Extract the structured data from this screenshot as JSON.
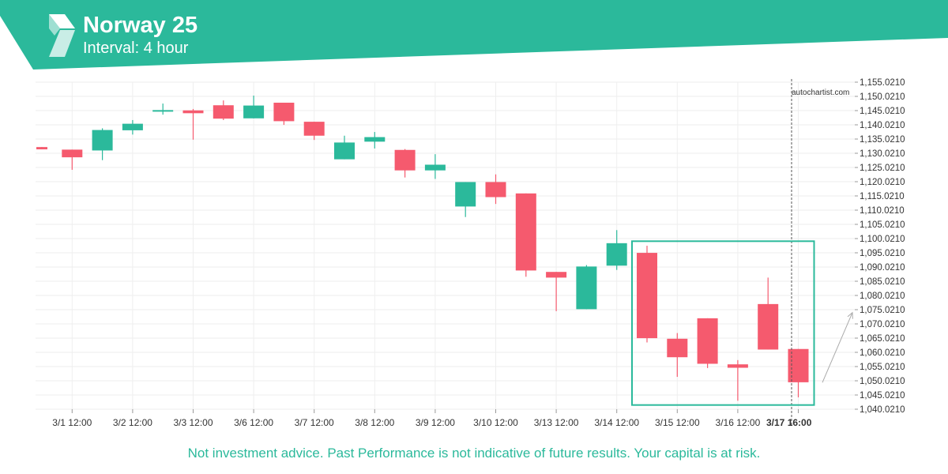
{
  "header": {
    "title": "Norway 25",
    "subtitle": "Interval: 4 hour",
    "logo_icon": "autochartist-logo-icon",
    "bg_color": "#2bb99b"
  },
  "watermark": "autochartist.com",
  "footer": {
    "disclaimer": "Not investment advice. Past Performance is not indicative of future results. Your capital is at risk."
  },
  "colors": {
    "bull": "#2bb99b",
    "bear": "#f55a6e",
    "pattern_box": "#2bb99b",
    "projection": "#aaaaaa",
    "grid": "#eeeeee"
  },
  "chart_data": {
    "type": "candlestick",
    "ylim": [
      1040.021,
      1155.021
    ],
    "y_ticks": [
      "1,155.0210",
      "1,150.0210",
      "1,145.0210",
      "1,140.0210",
      "1,135.0210",
      "1,130.0210",
      "1,125.0210",
      "1,120.0210",
      "1,115.0210",
      "1,110.0210",
      "1,105.0210",
      "1,100.0210",
      "1,095.0210",
      "1,090.0210",
      "1,085.0210",
      "1,080.0210",
      "1,075.0210",
      "1,070.0210",
      "1,065.0210",
      "1,060.0210",
      "1,055.0210",
      "1,050.0210",
      "1,045.0210",
      "1,040.0210"
    ],
    "x_ticks": [
      "3/1 12:00",
      "3/2 12:00",
      "3/3 12:00",
      "3/6 12:00",
      "3/7 12:00",
      "3/8 12:00",
      "3/9 12:00",
      "3/10 12:00",
      "3/13 12:00",
      "3/14 12:00",
      "3/15 12:00",
      "3/16 12:00",
      "3/17 16:00"
    ],
    "highlighted_x_tick": "3/17 16:00",
    "candles": [
      {
        "o": 1132.2,
        "h": 1132.2,
        "l": 1131.4,
        "c": 1131.4
      },
      {
        "o": 1131.3,
        "h": 1131.3,
        "l": 1124.2,
        "c": 1128.6
      },
      {
        "o": 1131.0,
        "h": 1138.8,
        "l": 1127.6,
        "c": 1138.2
      },
      {
        "o": 1138.1,
        "h": 1141.7,
        "l": 1136.6,
        "c": 1140.4
      },
      {
        "o": 1144.7,
        "h": 1147.5,
        "l": 1143.6,
        "c": 1145.2
      },
      {
        "o": 1145.1,
        "h": 1145.6,
        "l": 1134.8,
        "c": 1144.1
      },
      {
        "o": 1146.9,
        "h": 1148.6,
        "l": 1141.7,
        "c": 1142.2
      },
      {
        "o": 1142.3,
        "h": 1150.3,
        "l": 1142.3,
        "c": 1146.8
      },
      {
        "o": 1147.8,
        "h": 1147.8,
        "l": 1140.0,
        "c": 1141.3
      },
      {
        "o": 1141.1,
        "h": 1141.1,
        "l": 1134.7,
        "c": 1136.2
      },
      {
        "o": 1127.9,
        "h": 1136.2,
        "l": 1127.9,
        "c": 1133.8
      },
      {
        "o": 1134.1,
        "h": 1137.5,
        "l": 1131.7,
        "c": 1135.7
      },
      {
        "o": 1131.2,
        "h": 1131.5,
        "l": 1121.5,
        "c": 1124.0
      },
      {
        "o": 1124.0,
        "h": 1129.7,
        "l": 1121.0,
        "c": 1126.0
      },
      {
        "o": 1111.3,
        "h": 1119.9,
        "l": 1107.6,
        "c": 1119.9
      },
      {
        "o": 1119.9,
        "h": 1122.6,
        "l": 1112.2,
        "c": 1114.6
      },
      {
        "o": 1115.9,
        "h": 1115.9,
        "l": 1086.6,
        "c": 1088.8
      },
      {
        "o": 1088.3,
        "h": 1088.3,
        "l": 1074.5,
        "c": 1086.3
      },
      {
        "o": 1075.2,
        "h": 1090.7,
        "l": 1075.2,
        "c": 1090.2
      },
      {
        "o": 1090.5,
        "h": 1103.0,
        "l": 1089.0,
        "c": 1098.4
      },
      {
        "o": 1095.0,
        "h": 1097.5,
        "l": 1063.5,
        "c": 1065.0
      },
      {
        "o": 1064.8,
        "h": 1066.8,
        "l": 1051.4,
        "c": 1058.3
      },
      {
        "o": 1072.0,
        "h": 1072.0,
        "l": 1054.5,
        "c": 1056.0
      },
      {
        "o": 1055.8,
        "h": 1057.3,
        "l": 1043.0,
        "c": 1054.6
      },
      {
        "o": 1077.0,
        "h": 1086.3,
        "l": 1061.0,
        "c": 1061.0
      },
      {
        "o": 1061.2,
        "h": 1061.2,
        "l": 1044.2,
        "c": 1049.5
      }
    ],
    "pattern_box": {
      "start_index": 20,
      "end_index": 25,
      "low": 1041.5,
      "high": 1099.1
    },
    "projection": {
      "from": 1049.4,
      "to": 1074.0
    }
  }
}
